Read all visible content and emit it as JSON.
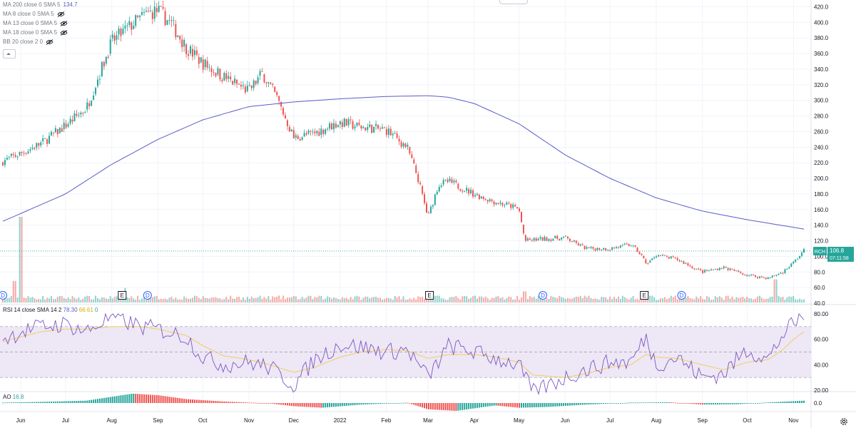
{
  "indicators": {
    "ma200": {
      "label": "MA 200 close 0 SMA 5",
      "value": "134.7"
    },
    "ma8": {
      "label": "MA 8 close 0 SMA 5"
    },
    "ma13": {
      "label": "MA 13 close 0 SMA 5"
    },
    "ma18": {
      "label": "MA 18 close 0 SMA 5"
    },
    "bb": {
      "label": "BB 20 close 2 0"
    }
  },
  "rsi_pane": {
    "label": "RSI 14 close SMA 14 2",
    "value1": "78.30",
    "value2": "66.61",
    "value3": "0"
  },
  "ao_pane": {
    "label": "AO",
    "value": "16.8"
  },
  "price_badge": {
    "symbol": "RCH",
    "price": "106.8",
    "countdown": "07:11:58"
  },
  "colors": {
    "up": "#26a69a",
    "down": "#ef5350",
    "ma200": "#5b5bc9",
    "rsi": "#7e57c2",
    "rsi_ma": "#f2cf5b",
    "rsi_band": "#ede7f6",
    "event_marker": "#2962ff"
  },
  "chart_data": [
    {
      "type": "candlestick",
      "title": "",
      "x": [
        "2021-05-20",
        "2021-06-01",
        "2021-06-15",
        "2021-07-01",
        "2021-07-15",
        "2021-08-01",
        "2021-08-15",
        "2021-08-25",
        "2021-09-01",
        "2021-09-10",
        "2021-09-20",
        "2021-10-01",
        "2021-10-15",
        "2021-11-01",
        "2021-11-10",
        "2021-11-20",
        "2021-12-01",
        "2021-12-15",
        "2022-01-01",
        "2022-01-15",
        "2022-02-01",
        "2022-02-15",
        "2022-02-22",
        "2022-03-01",
        "2022-03-08",
        "2022-03-15",
        "2022-04-01",
        "2022-04-15",
        "2022-04-25",
        "2022-05-01",
        "2022-05-05",
        "2022-05-15",
        "2022-06-01",
        "2022-06-15",
        "2022-07-01",
        "2022-07-15",
        "2022-07-20",
        "2022-07-26",
        "2022-08-01",
        "2022-08-15",
        "2022-09-01",
        "2022-09-15",
        "2022-10-01",
        "2022-10-15",
        "2022-10-25",
        "2022-11-01",
        "2022-11-08"
      ],
      "close": [
        222,
        232,
        245,
        268,
        290,
        375,
        398,
        412,
        415,
        398,
        368,
        348,
        330,
        312,
        335,
        302,
        252,
        258,
        272,
        266,
        262,
        240,
        202,
        150,
        192,
        196,
        180,
        170,
        165,
        160,
        120,
        122,
        124,
        110,
        110,
        115,
        106,
        90,
        102,
        96,
        80,
        86,
        76,
        72,
        80,
        92,
        107
      ],
      "volume_highlights": [
        {
          "date": "2021-06-01",
          "volume_rel": 1.0
        },
        {
          "date": "2021-05-28",
          "volume_rel": 0.25
        },
        {
          "date": "2021-08-10",
          "volume_rel": 0.17
        },
        {
          "date": "2022-05-05",
          "volume_rel": 0.13
        },
        {
          "date": "2022-10-20",
          "volume_rel": 0.27
        }
      ],
      "overlay": {
        "name": "MA 200",
        "x": [
          "2021-05-20",
          "2021-07-01",
          "2021-08-01",
          "2021-09-01",
          "2021-10-01",
          "2021-11-01",
          "2021-12-01",
          "2022-01-01",
          "2022-02-01",
          "2022-03-01",
          "2022-03-15",
          "2022-04-01",
          "2022-05-01",
          "2022-06-01",
          "2022-07-01",
          "2022-08-01",
          "2022-09-01",
          "2022-10-01",
          "2022-11-08"
        ],
        "y": [
          145,
          180,
          218,
          250,
          275,
          292,
          298,
          302,
          305,
          306,
          304,
          296,
          270,
          230,
          200,
          175,
          158,
          147,
          135
        ]
      },
      "events": [
        {
          "date": "2021-05-20",
          "type": "D"
        },
        {
          "date": "2021-08-08",
          "type": "E"
        },
        {
          "date": "2021-08-25",
          "type": "D"
        },
        {
          "date": "2022-03-02",
          "type": "E"
        },
        {
          "date": "2022-05-17",
          "type": "D"
        },
        {
          "date": "2022-07-24",
          "type": "E"
        },
        {
          "date": "2022-08-18",
          "type": "D"
        }
      ],
      "y_ticks": [
        40,
        60,
        80,
        100,
        120,
        140,
        160,
        180,
        200,
        220,
        240,
        260,
        280,
        300,
        320,
        340,
        360,
        380,
        400,
        420
      ],
      "x_tick_labels": [
        "Jun",
        "Jul",
        "Aug",
        "Sep",
        "Oct",
        "Nov",
        "Dec",
        "2022",
        "Feb",
        "Mar",
        "Apr",
        "May",
        "Jun",
        "Jul",
        "Aug",
        "Sep",
        "Oct",
        "Nov"
      ],
      "last_price": 106.8
    },
    {
      "type": "line",
      "name": "RSI",
      "y_ticks": [
        20,
        40,
        60,
        80
      ],
      "bands": [
        30,
        50,
        70
      ],
      "x": [
        "2021-05-20",
        "2021-06-01",
        "2021-06-15",
        "2021-07-01",
        "2021-07-15",
        "2021-08-01",
        "2021-08-20",
        "2021-09-01",
        "2021-09-20",
        "2021-10-01",
        "2021-10-15",
        "2021-11-01",
        "2021-11-15",
        "2021-12-01",
        "2021-12-15",
        "2022-01-01",
        "2022-01-15",
        "2022-02-01",
        "2022-02-15",
        "2022-03-01",
        "2022-03-15",
        "2022-04-01",
        "2022-04-15",
        "2022-05-01",
        "2022-05-10",
        "2022-06-01",
        "2022-06-15",
        "2022-07-01",
        "2022-07-15",
        "2022-07-25",
        "2022-08-01",
        "2022-08-15",
        "2022-09-01",
        "2022-09-15",
        "2022-10-01",
        "2022-10-15",
        "2022-10-25",
        "2022-11-01",
        "2022-11-08"
      ],
      "y": [
        60,
        66,
        70,
        72,
        66,
        78,
        70,
        68,
        62,
        46,
        40,
        42,
        38,
        24,
        44,
        56,
        54,
        50,
        52,
        30,
        55,
        50,
        45,
        40,
        18,
        30,
        36,
        42,
        42,
        62,
        40,
        46,
        30,
        33,
        52,
        44,
        64,
        72,
        78
      ],
      "ma_y": [
        58,
        62,
        66,
        68,
        68,
        70,
        70,
        68,
        63,
        55,
        47,
        44,
        40,
        34,
        38,
        46,
        50,
        52,
        51,
        45,
        48,
        48,
        46,
        42,
        32,
        30,
        33,
        38,
        40,
        48,
        46,
        45,
        40,
        36,
        42,
        44,
        52,
        60,
        66
      ]
    },
    {
      "type": "bar",
      "name": "AO",
      "y_ticks": [
        0
      ],
      "x": [
        "2021-05-20",
        "2021-06-15",
        "2021-07-15",
        "2021-08-01",
        "2021-08-15",
        "2021-09-01",
        "2021-09-20",
        "2021-10-15",
        "2021-11-15",
        "2021-12-01",
        "2021-12-20",
        "2022-01-15",
        "2022-02-15",
        "2022-03-01",
        "2022-03-20",
        "2022-04-15",
        "2022-05-01",
        "2022-05-20",
        "2022-06-15",
        "2022-07-15",
        "2022-08-10",
        "2022-09-01",
        "2022-09-25",
        "2022-10-15",
        "2022-11-08"
      ],
      "values": [
        0.5,
        1.5,
        3,
        8,
        12,
        10,
        5,
        2,
        -0.5,
        -4,
        -6,
        -2,
        0.5,
        -8,
        -10,
        -3,
        -6,
        -5,
        -2,
        0.5,
        1,
        -2,
        -1.5,
        0.8,
        3
      ]
    }
  ]
}
